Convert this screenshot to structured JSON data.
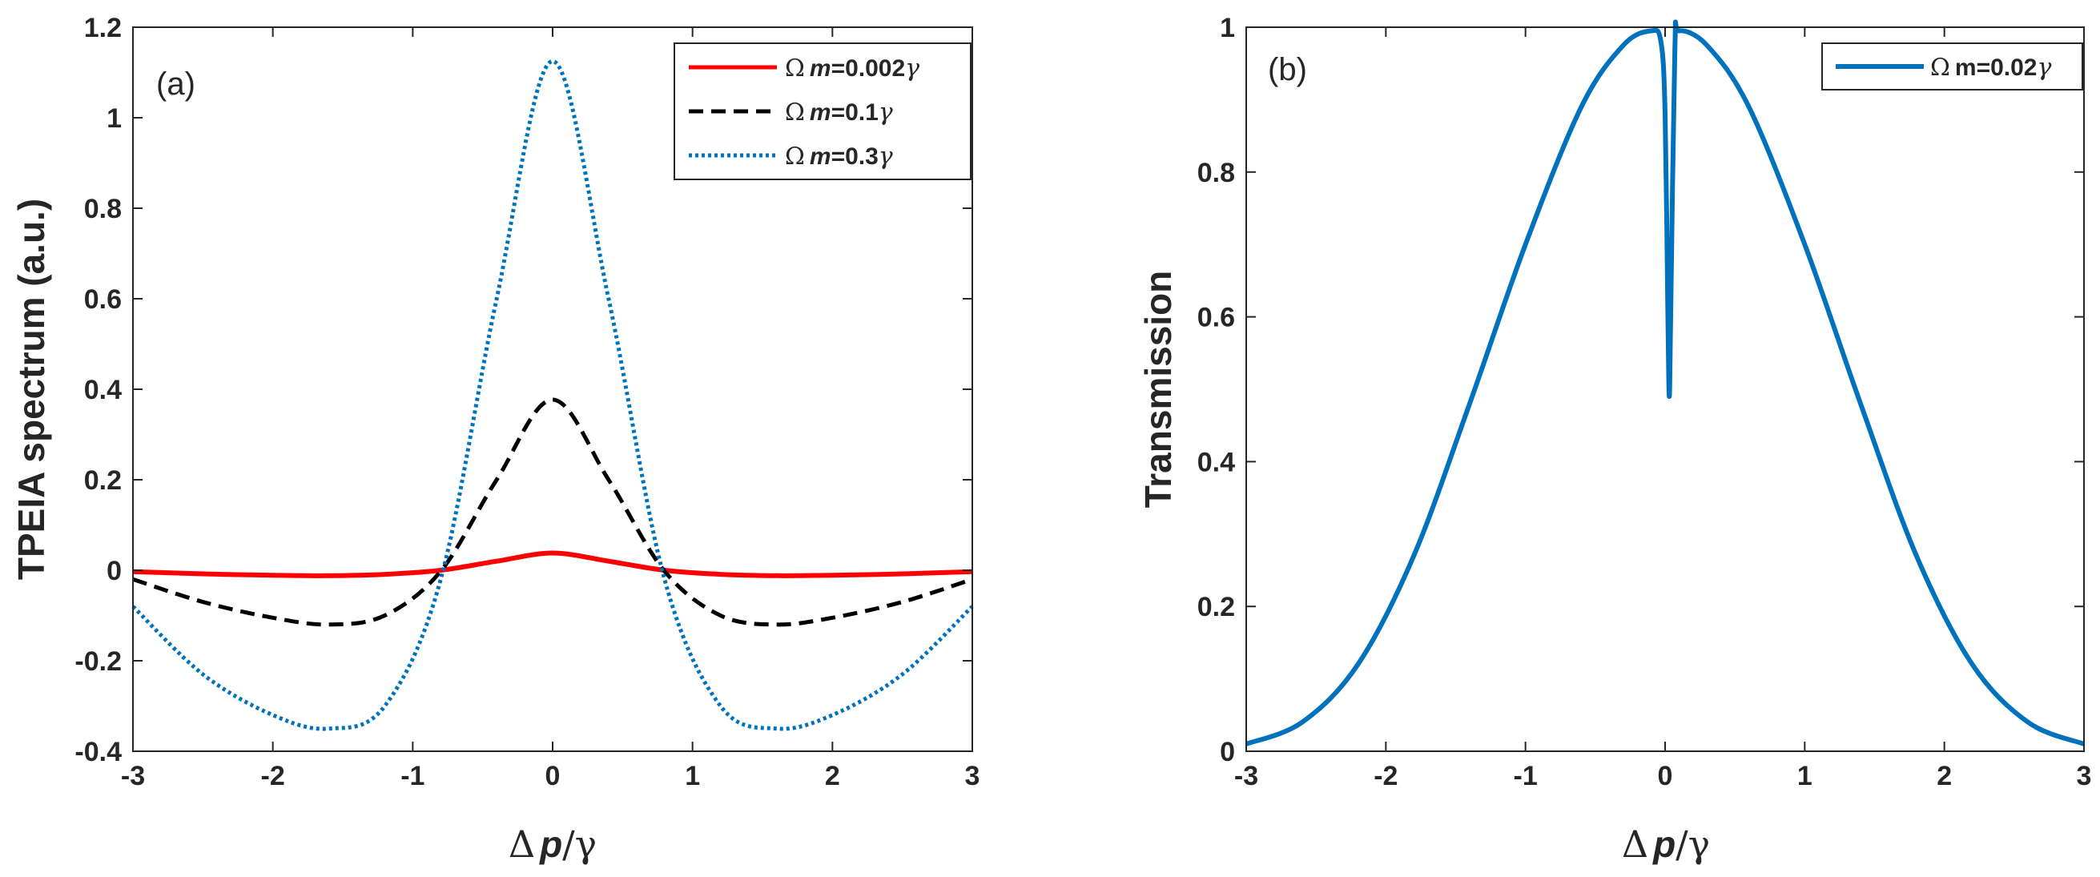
{
  "chart_data": [
    {
      "type": "line",
      "panel_label": "(a)",
      "xlabel": {
        "symbol": "Δ",
        "var": "p",
        "rest": "/γ"
      },
      "ylabel": "TPEIA spectrum (a.u.)",
      "xlim": [
        -3,
        3
      ],
      "ylim": [
        -0.4,
        1.2
      ],
      "xticks": [
        -3,
        -2,
        -1,
        0,
        1,
        2,
        3
      ],
      "xtick_labels": [
        "-3",
        "-2",
        "-1",
        "0",
        "1",
        "2",
        "3"
      ],
      "yticks": [
        -0.4,
        -0.2,
        0,
        0.2,
        0.4,
        0.6,
        0.8,
        1,
        1.2
      ],
      "ytick_labels": [
        "-0.4",
        "-0.2",
        "0",
        "0.2",
        "0.4",
        "0.6",
        "0.8",
        "1",
        "1.2"
      ],
      "grid": false,
      "legend_position": "top-right",
      "series": [
        {
          "name": "Ωm=0.002γ",
          "legend": {
            "sym": "Ω",
            "var": "m",
            "val": "=0.002",
            "tail": "γ"
          },
          "color": "#ff0000",
          "style": "solid",
          "x": [
            -3,
            -2.5,
            -2,
            -1.6,
            -1.2,
            -0.8,
            -0.4,
            0,
            0.4,
            0.8,
            1.2,
            1.6,
            2,
            2.5,
            3
          ],
          "y": [
            -0.003,
            -0.008,
            -0.011,
            -0.012,
            -0.009,
            0,
            0.02,
            0.038,
            0.02,
            0,
            -0.009,
            -0.012,
            -0.011,
            -0.008,
            -0.003
          ]
        },
        {
          "name": "Ωm=0.1γ",
          "legend": {
            "sym": "Ω",
            "var": "m",
            "val": "=0.1",
            "tail": "γ"
          },
          "color": "#000000",
          "style": "dashed",
          "x": [
            -3,
            -2.5,
            -2,
            -1.6,
            -1.2,
            -0.8,
            -0.4,
            0,
            0.4,
            0.8,
            1.2,
            1.6,
            2,
            2.5,
            3
          ],
          "y": [
            -0.02,
            -0.07,
            -0.105,
            -0.12,
            -0.1,
            -0.002,
            0.2,
            0.377,
            0.2,
            -0.002,
            -0.1,
            -0.12,
            -0.105,
            -0.07,
            -0.02
          ]
        },
        {
          "name": "Ωm=0.3γ",
          "legend": {
            "sym": "Ω",
            "var": "m",
            "val": "=0.3",
            "tail": "γ"
          },
          "color": "#0072bd",
          "style": "dotted",
          "x": [
            -3,
            -2.5,
            -2,
            -1.6,
            -1.2,
            -0.8,
            -0.4,
            0,
            0.4,
            0.8,
            1.2,
            1.6,
            2,
            2.5,
            3
          ],
          "y": [
            -0.08,
            -0.23,
            -0.32,
            -0.35,
            -0.3,
            -0.02,
            0.6,
            1.125,
            0.6,
            -0.02,
            -0.3,
            -0.35,
            -0.32,
            -0.23,
            -0.08
          ]
        }
      ]
    },
    {
      "type": "line",
      "panel_label": "(b)",
      "xlabel": {
        "symbol": "Δ",
        "var": "p",
        "rest": "/γ"
      },
      "ylabel": "Transmission",
      "xlim": [
        -3,
        3
      ],
      "ylim": [
        0,
        1
      ],
      "xticks": [
        -3,
        -2,
        -1,
        0,
        1,
        2,
        3
      ],
      "xtick_labels": [
        "-3",
        "-2",
        "-1",
        "0",
        "1",
        "2",
        "3"
      ],
      "yticks": [
        0,
        0.2,
        0.4,
        0.6,
        0.8,
        1
      ],
      "ytick_labels": [
        "0",
        "0.2",
        "0.4",
        "0.6",
        "0.8",
        "1"
      ],
      "grid": false,
      "legend_position": "top-right",
      "series": [
        {
          "name": "Ωm=0.02γ",
          "legend": {
            "sym": "Ω",
            "var": "m",
            "val": "=0.02",
            "tail": "γ"
          },
          "color": "#0072bd",
          "style": "solid",
          "x": [
            -3,
            -2.6,
            -2.2,
            -1.8,
            -1.4,
            -1.0,
            -0.6,
            -0.3,
            -0.1,
            -0.03,
            0,
            0.02,
            0.03,
            0.04,
            0.07,
            0.1,
            0.3,
            0.6,
            1.0,
            1.4,
            1.8,
            2.2,
            2.6,
            3
          ],
          "y": [
            0.01,
            0.04,
            0.12,
            0.27,
            0.48,
            0.7,
            0.89,
            0.975,
            0.995,
            0.98,
            0.88,
            0.6,
            0.49,
            0.6,
            0.97,
            0.995,
            0.975,
            0.89,
            0.7,
            0.48,
            0.27,
            0.12,
            0.04,
            0.01
          ]
        }
      ]
    }
  ]
}
